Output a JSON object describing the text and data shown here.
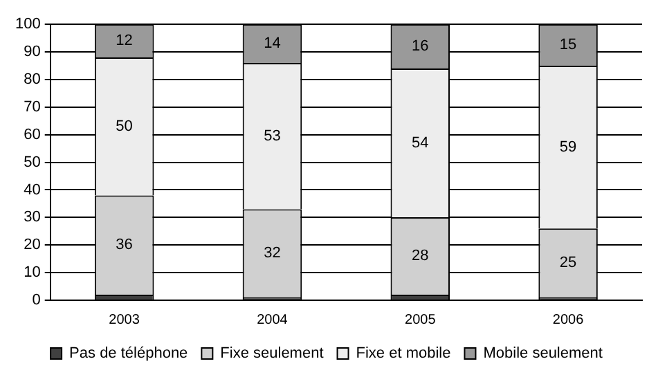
{
  "chart_data": {
    "type": "bar",
    "stacked": true,
    "categories": [
      "2003",
      "2004",
      "2005",
      "2006"
    ],
    "series": [
      {
        "name": "Pas de téléphone",
        "color": "#404040",
        "values": [
          2,
          1,
          2,
          1
        ],
        "value_labels": [
          null,
          null,
          null,
          null
        ]
      },
      {
        "name": "Fixe seulement",
        "color": "#d0d0d0",
        "values": [
          36,
          32,
          28,
          25
        ],
        "value_labels": [
          "36",
          "32",
          "28",
          "25"
        ]
      },
      {
        "name": "Fixe et mobile",
        "color": "#ededed",
        "values": [
          50,
          53,
          54,
          59
        ],
        "value_labels": [
          "50",
          "53",
          "54",
          "59"
        ]
      },
      {
        "name": "Mobile seulement",
        "color": "#9a9a9a",
        "values": [
          12,
          14,
          16,
          15
        ],
        "value_labels": [
          "12",
          "14",
          "16",
          "15"
        ]
      }
    ],
    "ylim": [
      0,
      100
    ],
    "yticks": [
      0,
      10,
      20,
      30,
      40,
      50,
      60,
      70,
      80,
      90,
      100
    ],
    "grid": "y",
    "legend": "bottom"
  }
}
